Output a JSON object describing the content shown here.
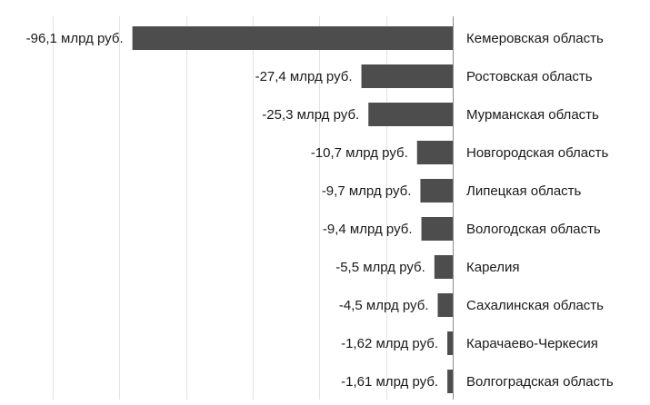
{
  "chart_data": {
    "type": "bar",
    "orientation": "horizontal",
    "categories": [
      "Кемеровская область",
      "Ростовская область",
      "Мурманская область",
      "Новгородская область",
      "Липецкая область",
      "Вологодская область",
      "Карелия",
      "Сахалинская область",
      "Карачаево-Черкесия",
      "Волгоградская область"
    ],
    "values": [
      -96.1,
      -27.4,
      -25.3,
      -10.7,
      -9.7,
      -9.4,
      -5.5,
      -4.5,
      -1.62,
      -1.61
    ],
    "value_labels": [
      "-96,1 млрд руб.",
      "-27,4 млрд руб.",
      "-25,3 млрд руб.",
      "-10,7 млрд руб.",
      "-9,7 млрд руб.",
      "-9,4 млрд руб.",
      "-5,5 млрд руб.",
      "-4,5 млрд руб.",
      "-1,62 млрд руб.",
      "-1,61 млрд руб."
    ],
    "xlim": [
      -120,
      0
    ],
    "x_gridlines": [
      -120,
      -100,
      -80,
      -60,
      -40,
      -20,
      0
    ],
    "title": "",
    "xlabel": "",
    "ylabel": "",
    "grid": true,
    "legend": "none",
    "colors": {
      "bar": "#4d4d4d",
      "grid": "#e3e3e3",
      "axis": "#8c8c8c",
      "text": "#1a1a1a"
    }
  }
}
